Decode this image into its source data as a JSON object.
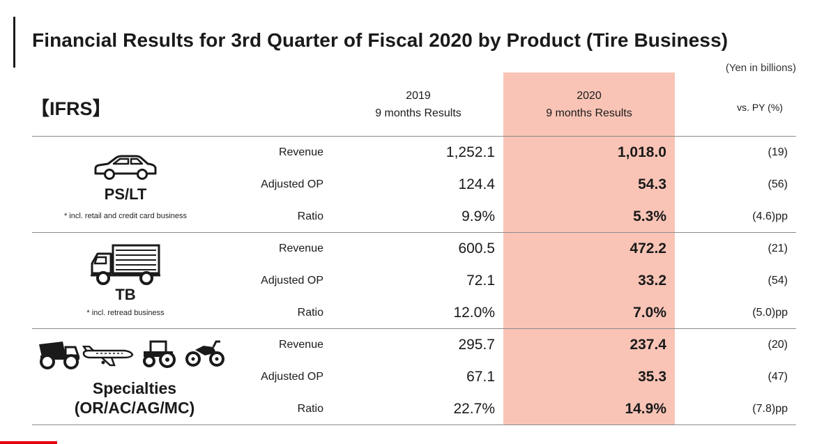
{
  "header": {
    "title": "Financial Results for 3rd Quarter of Fiscal 2020 by Product (Tire Business)",
    "unit": "(Yen in billions)",
    "standard": "【IFRS】"
  },
  "columns": {
    "y2019_line1": "2019",
    "y2019_line2": "9 months Results",
    "y2020_line1": "2020",
    "y2020_line2": "9 months Results",
    "vs_py": "vs. PY (%)"
  },
  "segments": [
    {
      "name": "PS/LT",
      "note": "* incl. retail and credit card business",
      "icon": "car-icon",
      "rows": [
        {
          "metric": "Revenue",
          "v2019": "1,252.1",
          "v2020": "1,018.0",
          "vs_py": "(19)"
        },
        {
          "metric": "Adjusted OP",
          "v2019": "124.4",
          "v2020": "54.3",
          "vs_py": "(56)"
        },
        {
          "metric": "Ratio",
          "v2019": "9.9%",
          "v2020": "5.3%",
          "vs_py": "(4.6)pp"
        }
      ]
    },
    {
      "name": "TB",
      "note": "* incl. retread business",
      "icon": "truck-icon",
      "rows": [
        {
          "metric": "Revenue",
          "v2019": "600.5",
          "v2020": "472.2",
          "vs_py": "(21)"
        },
        {
          "metric": "Adjusted OP",
          "v2019": "72.1",
          "v2020": "33.2",
          "vs_py": "(54)"
        },
        {
          "metric": "Ratio",
          "v2019": "12.0%",
          "v2020": "7.0%",
          "vs_py": "(5.0)pp"
        }
      ]
    },
    {
      "name_line1": "Specialties",
      "name_line2": "(OR/AC/AG/MC)",
      "icons": [
        "dump-truck-icon",
        "airplane-icon",
        "tractor-icon",
        "motorcycle-icon"
      ],
      "rows": [
        {
          "metric": "Revenue",
          "v2019": "295.7",
          "v2020": "237.4",
          "vs_py": "(20)"
        },
        {
          "metric": "Adjusted OP",
          "v2019": "67.1",
          "v2020": "35.3",
          "vs_py": "(47)"
        },
        {
          "metric": "Ratio",
          "v2019": "22.7%",
          "v2020": "14.9%",
          "vs_py": "(7.8)pp"
        }
      ]
    }
  ],
  "colors": {
    "highlight": "#f9c4b6",
    "text": "#1a1a1a",
    "accent": "#e60012"
  }
}
